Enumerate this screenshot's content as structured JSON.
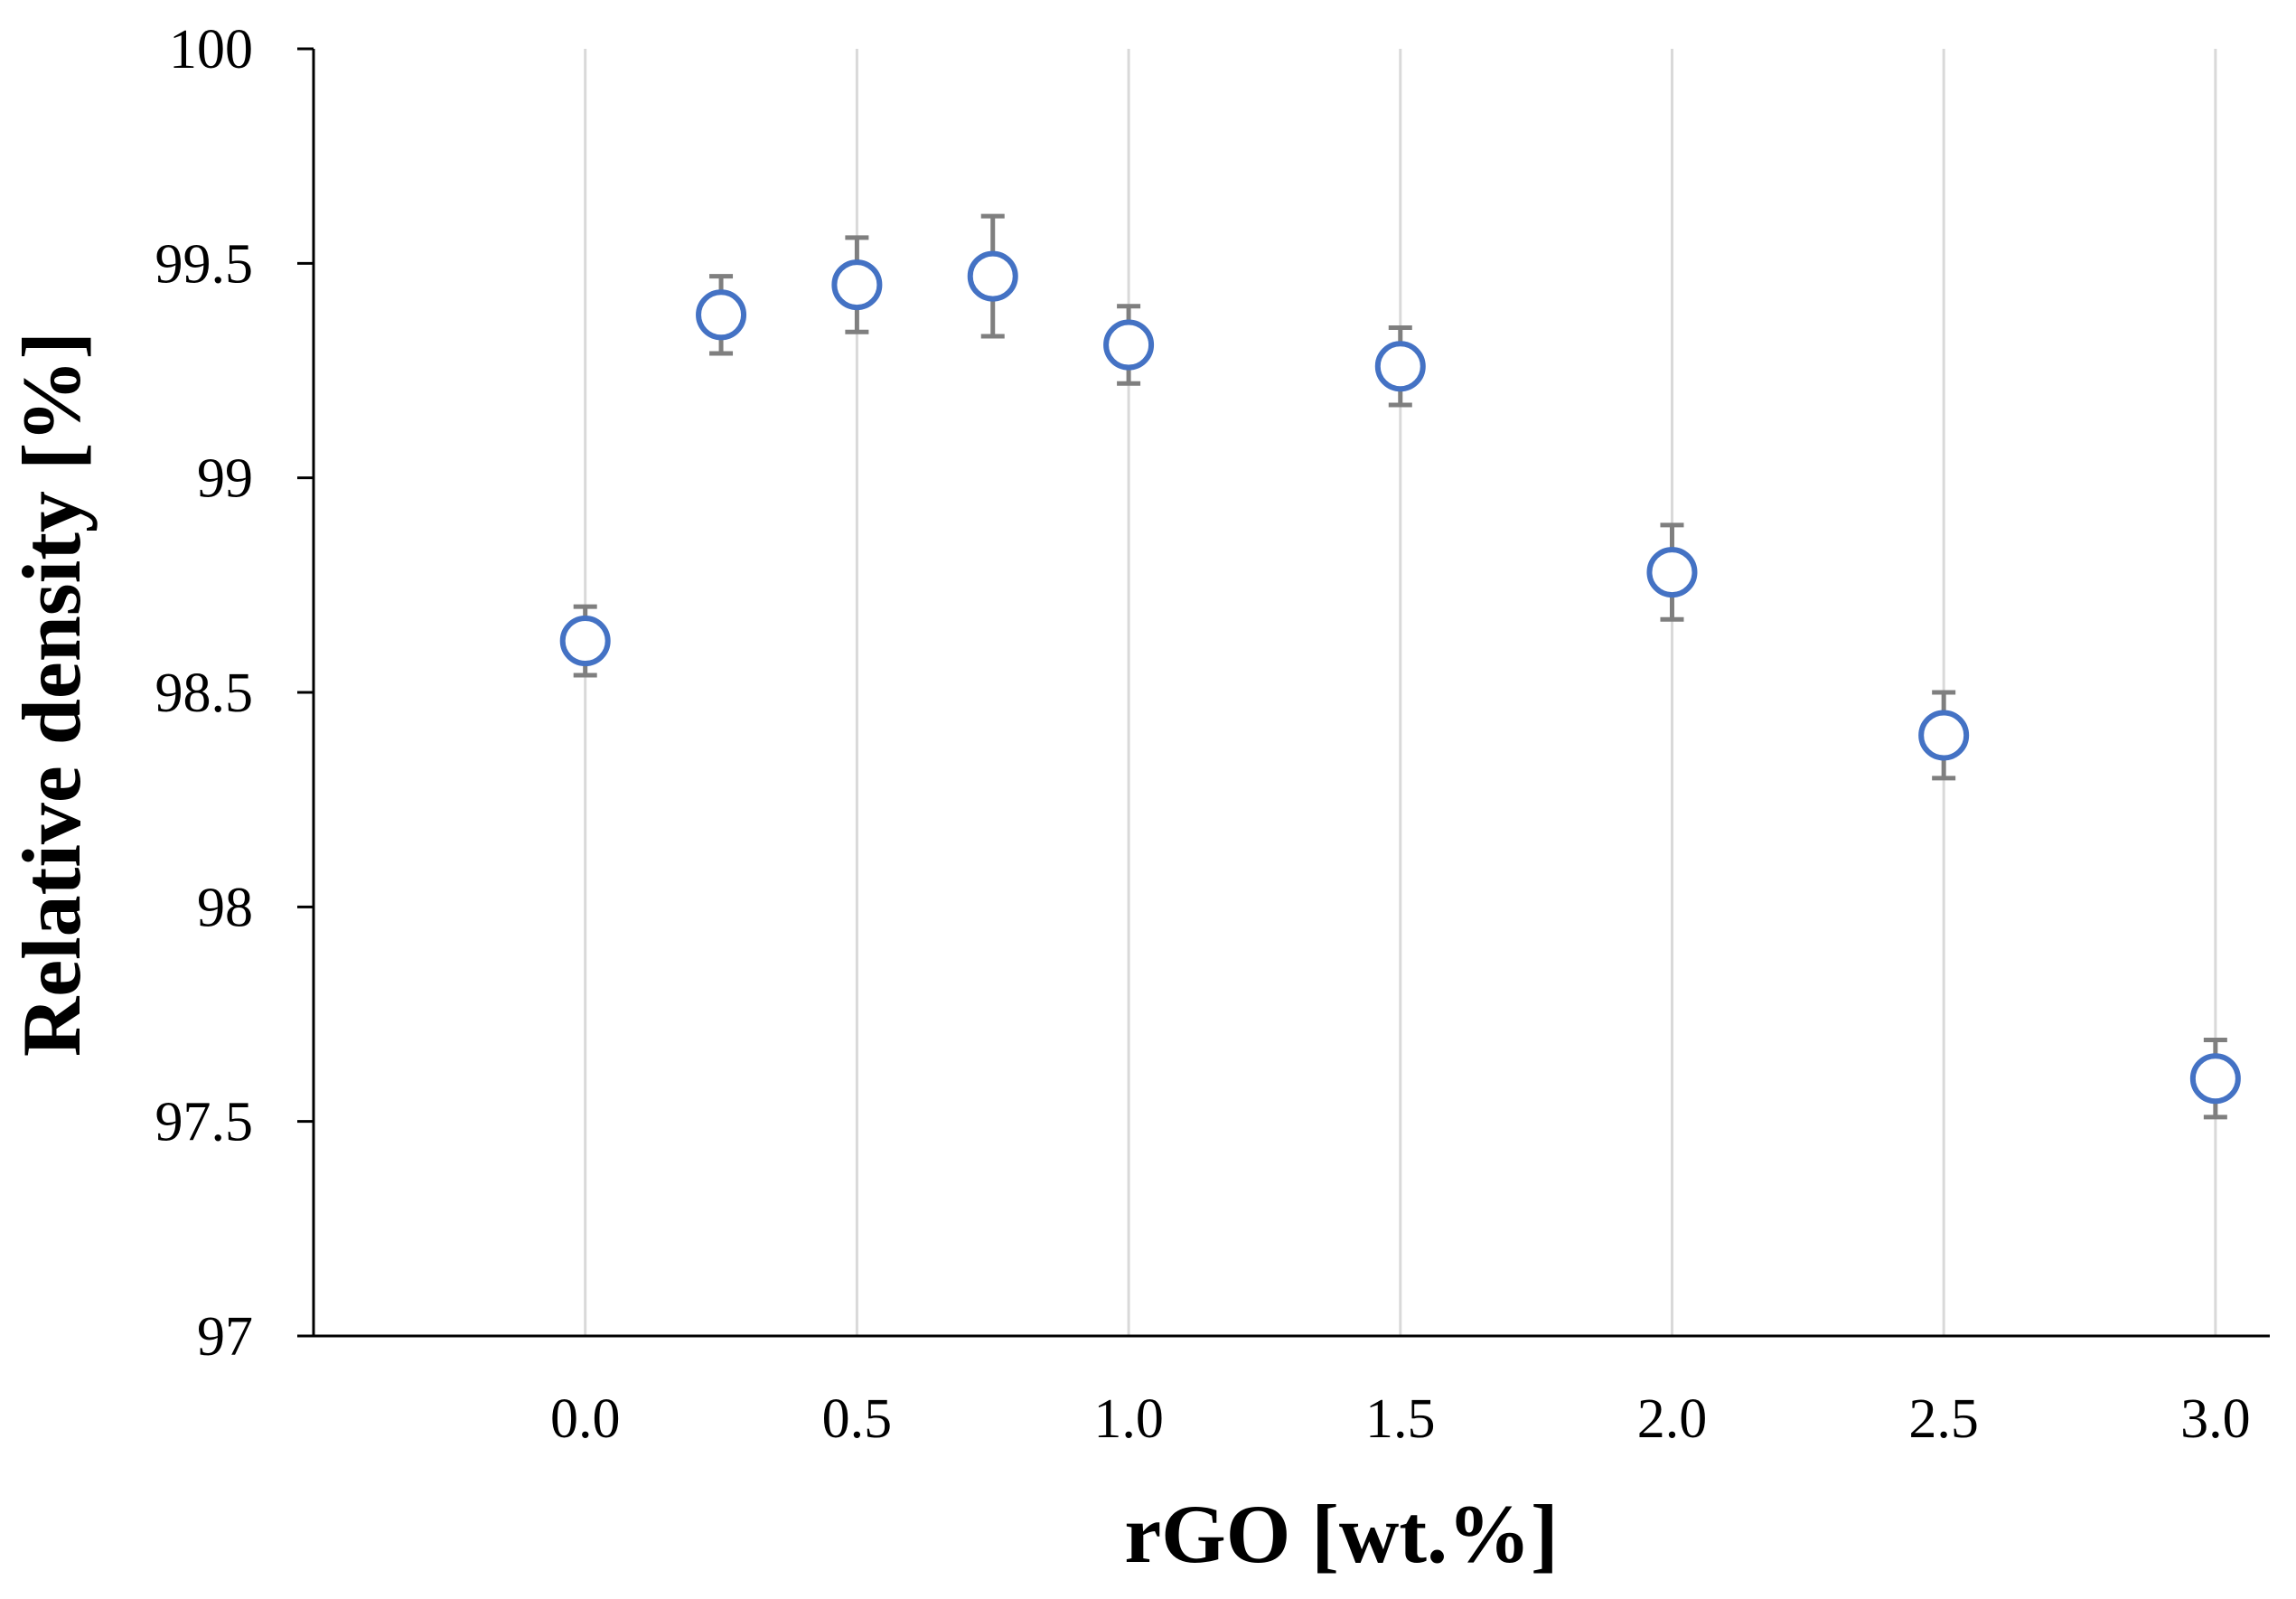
{
  "chart_data": {
    "type": "scatter",
    "title": "",
    "xlabel": "rGO [wt.%]",
    "ylabel": "Relative density [%]",
    "xlim": [
      -0.5,
      3.1
    ],
    "ylim": [
      97,
      100
    ],
    "x_ticks": [
      0.0,
      0.5,
      1.0,
      1.5,
      2.0,
      2.5,
      3.0
    ],
    "x_tick_labels": [
      "0.0",
      "0.5",
      "1.0",
      "1.5",
      "2.0",
      "2.5",
      "3.0"
    ],
    "y_ticks": [
      97,
      97.5,
      98,
      98.5,
      99,
      99.5,
      100
    ],
    "y_tick_labels": [
      "97",
      "97.5",
      "98",
      "98.5",
      "99",
      "99.5",
      "100"
    ],
    "grid": "vertical",
    "marker": "open-circle",
    "series": [
      {
        "name": "Relative density",
        "color": "#4472C4",
        "error_color": "#7F7F7F",
        "points": [
          {
            "x": 0.0,
            "y": 98.62,
            "err": 0.08
          },
          {
            "x": 0.25,
            "y": 99.38,
            "err": 0.09
          },
          {
            "x": 0.5,
            "y": 99.45,
            "err": 0.11
          },
          {
            "x": 0.75,
            "y": 99.47,
            "err": 0.14
          },
          {
            "x": 1.0,
            "y": 99.31,
            "err": 0.09
          },
          {
            "x": 1.5,
            "y": 99.26,
            "err": 0.09
          },
          {
            "x": 2.0,
            "y": 98.78,
            "err": 0.11
          },
          {
            "x": 2.5,
            "y": 98.4,
            "err": 0.1
          },
          {
            "x": 3.0,
            "y": 97.6,
            "err": 0.09
          }
        ]
      }
    ]
  }
}
